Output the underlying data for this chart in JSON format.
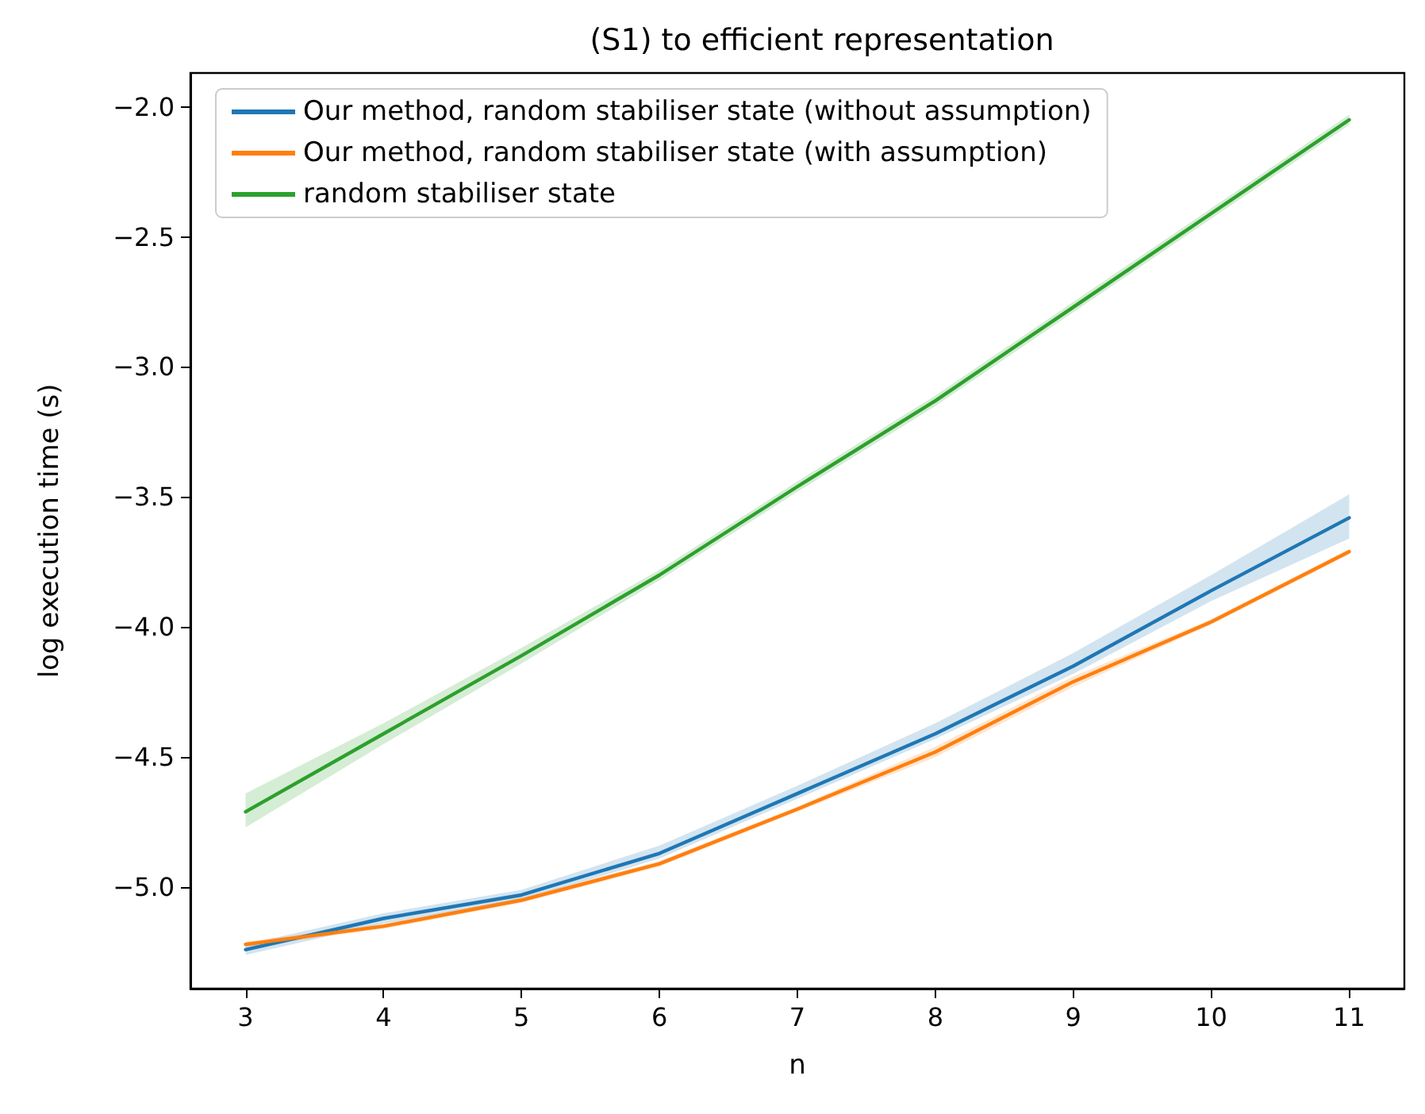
{
  "chart_data": {
    "type": "line",
    "title": "(S1) to efficient representation",
    "xlabel": "n",
    "ylabel": "log execution time (s)",
    "x": [
      3,
      4,
      5,
      6,
      7,
      8,
      9,
      10,
      11
    ],
    "series": [
      {
        "name": "Our method, random stabiliser state (without assumption)",
        "color": "#1f77b4",
        "values": [
          -5.24,
          -5.12,
          -5.03,
          -4.87,
          -4.64,
          -4.41,
          -4.15,
          -3.86,
          -3.58
        ],
        "lower": [
          -5.26,
          -5.14,
          -5.05,
          -4.89,
          -4.66,
          -4.43,
          -4.18,
          -3.9,
          -3.66
        ],
        "upper": [
          -5.22,
          -5.1,
          -5.01,
          -4.84,
          -4.61,
          -4.37,
          -4.1,
          -3.8,
          -3.49
        ]
      },
      {
        "name": "Our method, random stabiliser state (with assumption)",
        "color": "#ff7f0e",
        "values": [
          -5.22,
          -5.15,
          -5.05,
          -4.91,
          -4.7,
          -4.48,
          -4.21,
          -3.98,
          -3.71
        ],
        "lower": [
          -5.23,
          -5.16,
          -5.06,
          -4.92,
          -4.71,
          -4.5,
          -4.23,
          -3.99,
          -3.72
        ],
        "upper": [
          -5.21,
          -5.14,
          -5.04,
          -4.9,
          -4.69,
          -4.46,
          -4.19,
          -3.97,
          -3.7
        ]
      },
      {
        "name": "random stabiliser state",
        "color": "#2ca02c",
        "values": [
          -4.71,
          -4.41,
          -4.11,
          -3.8,
          -3.46,
          -3.13,
          -2.77,
          -2.41,
          -2.05
        ],
        "lower": [
          -4.77,
          -4.45,
          -4.14,
          -3.82,
          -3.48,
          -3.15,
          -2.79,
          -2.43,
          -2.07
        ],
        "upper": [
          -4.64,
          -4.37,
          -4.08,
          -3.78,
          -3.44,
          -3.11,
          -2.75,
          -2.39,
          -2.03
        ]
      }
    ],
    "xlim": [
      2.6,
      11.4
    ],
    "xticks": [
      3,
      4,
      5,
      6,
      7,
      8,
      9,
      10,
      11
    ],
    "ylim": [
      -5.39,
      -1.87
    ],
    "yticks": [
      {
        "value": -5,
        "label": "−5.0"
      },
      {
        "value": -4.5,
        "label": "−4.5"
      },
      {
        "value": -4,
        "label": "−4.0"
      },
      {
        "value": -3.5,
        "label": "−3.5"
      },
      {
        "value": -3,
        "label": "−3.0"
      },
      {
        "value": -2.5,
        "label": "−2.5"
      },
      {
        "value": -2,
        "label": "−2.0"
      }
    ],
    "grid": false,
    "legend": "top left",
    "marker": "none",
    "line_style": "solid"
  }
}
